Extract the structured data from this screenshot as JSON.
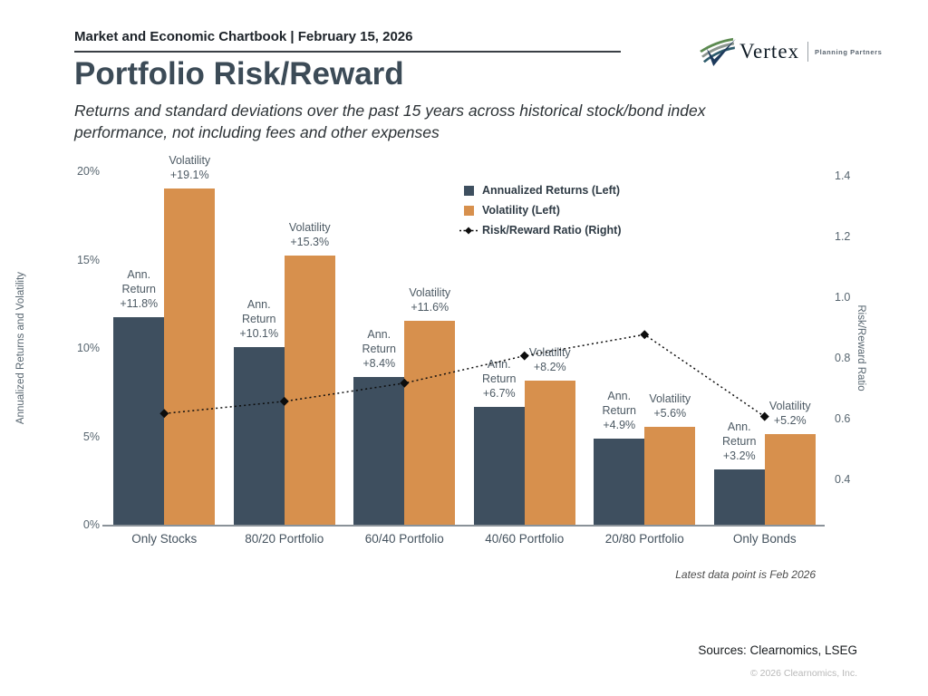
{
  "header": {
    "chartbook_title": "Market and Economic Chartbook | February 15, 2026"
  },
  "logo": {
    "brand": "Vertex",
    "tagline": "Planning Partners"
  },
  "title": "Portfolio Risk/Reward",
  "subtitle": "Returns and standard deviations over the past 15 years across historical stock/bond index performance, not including fees and other expenses",
  "chart_data": {
    "type": "bar",
    "categories": [
      "Only Stocks",
      "80/20 Portfolio",
      "60/40 Portfolio",
      "40/60 Portfolio",
      "20/80 Portfolio",
      "Only Bonds"
    ],
    "series": [
      {
        "name": "Annualized Returns (Left)",
        "type": "bar",
        "axis": "left",
        "color": "#3e4f5f",
        "values": [
          11.8,
          10.1,
          8.4,
          6.7,
          4.9,
          3.2
        ],
        "annotation_title_lines": [
          "Ann.",
          "Return"
        ],
        "labels": [
          "+11.8%",
          "+10.1%",
          "+8.4%",
          "+6.7%",
          "+4.9%",
          "+3.2%"
        ]
      },
      {
        "name": "Volatility (Left)",
        "type": "bar",
        "axis": "left",
        "color": "#d7904d",
        "values": [
          19.1,
          15.3,
          11.6,
          8.2,
          5.6,
          5.2
        ],
        "annotation_title_lines": [
          "Volatility"
        ],
        "labels": [
          "+19.1%",
          "+15.3%",
          "+11.6%",
          "+8.2%",
          "+5.6%",
          "+5.2%"
        ]
      },
      {
        "name": "Risk/Reward Ratio (Right)",
        "type": "line",
        "axis": "right",
        "color": "#0d0d0d",
        "values": [
          0.62,
          0.66,
          0.72,
          0.81,
          0.88,
          0.61
        ]
      }
    ],
    "left_axis": {
      "label": "Annualized Returns and Volatility",
      "ticks": [
        "0%",
        "5%",
        "10%",
        "15%",
        "20%"
      ],
      "range": [
        0,
        20
      ]
    },
    "right_axis": {
      "label": "Risk/Reward Ratio",
      "ticks": [
        "0.4",
        "0.6",
        "0.8",
        "1.0",
        "1.2",
        "1.4"
      ],
      "range": [
        0.4,
        1.4
      ]
    },
    "legend_position": "upper center",
    "grid": false
  },
  "footnote": "Latest data point is Feb 2026",
  "sources": "Sources: Clearnomics, LSEG",
  "copyright": "© 2026 Clearnomics, Inc."
}
